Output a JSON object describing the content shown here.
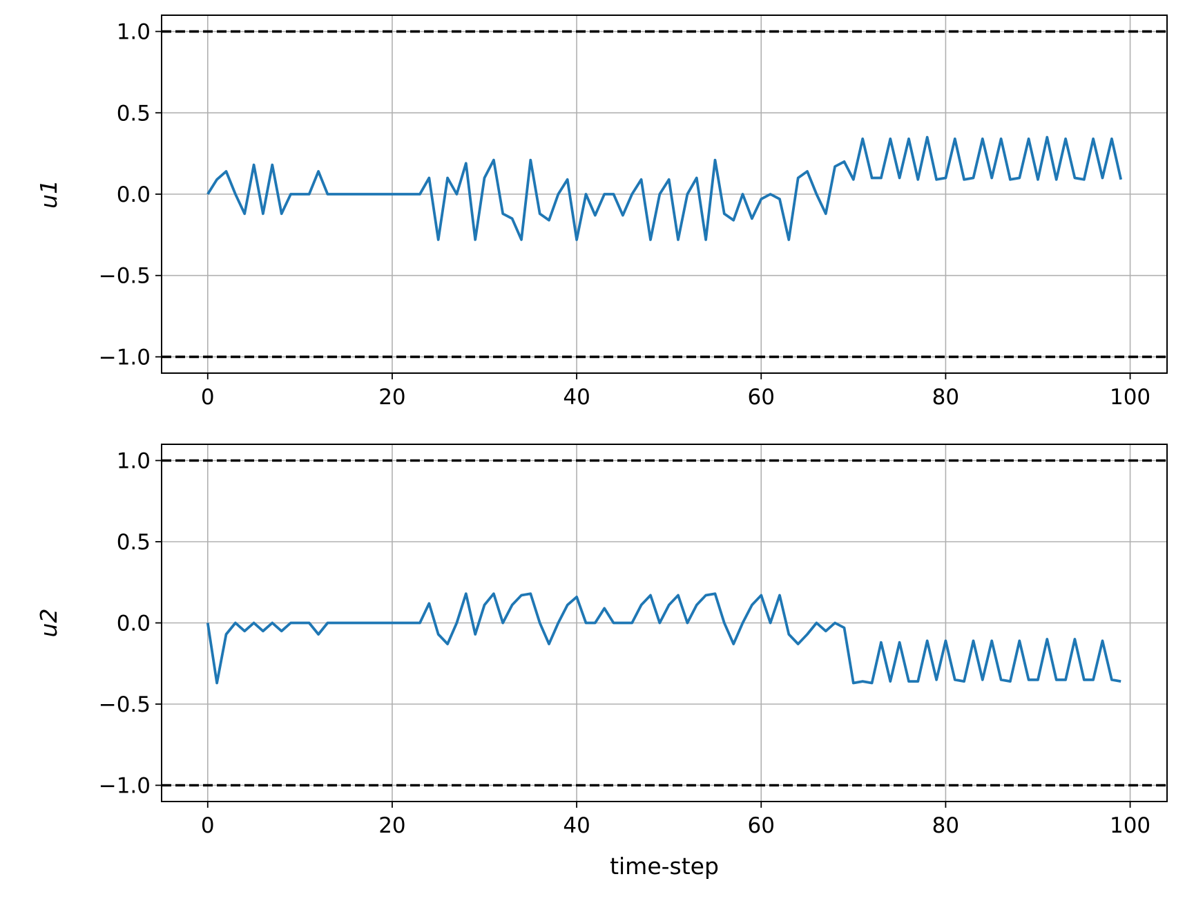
{
  "chart_data": [
    {
      "type": "line",
      "ylabel": "u1",
      "xlabel": "",
      "xlim": [
        -5,
        104
      ],
      "ylim": [
        -1.1,
        1.1
      ],
      "xticks": [
        0,
        20,
        40,
        60,
        80,
        100
      ],
      "yticks": [
        1.0,
        0.5,
        0.0,
        -0.5,
        -1.0
      ],
      "xtick_labels": [
        "0",
        "20",
        "40",
        "60",
        "80",
        "100"
      ],
      "ytick_labels": [
        "1.0",
        "0.5",
        "0.0",
        "−0.5",
        "−1.0"
      ],
      "grid": true,
      "bounds": [
        1.0,
        -1.0
      ],
      "series_color": "#1f77b4",
      "bound_color": "#000000",
      "x_start": 0,
      "values": [
        0.0,
        0.09,
        0.14,
        0.0,
        -0.12,
        0.18,
        -0.12,
        0.18,
        -0.12,
        0.0,
        0.0,
        0.0,
        0.14,
        0.0,
        0.0,
        0.0,
        0.0,
        0.0,
        0.0,
        0.0,
        0.0,
        0.0,
        0.0,
        0.0,
        0.1,
        -0.28,
        0.1,
        0.0,
        0.19,
        -0.28,
        0.1,
        0.21,
        -0.12,
        -0.15,
        -0.28,
        0.21,
        -0.12,
        -0.16,
        0.0,
        0.09,
        -0.28,
        0.0,
        -0.13,
        0.0,
        0.0,
        -0.13,
        0.0,
        0.09,
        -0.28,
        0.0,
        0.09,
        -0.28,
        0.0,
        0.1,
        -0.28,
        0.21,
        -0.12,
        -0.16,
        0.0,
        -0.15,
        -0.03,
        0.0,
        -0.03,
        -0.28,
        0.1,
        0.14,
        0.0,
        -0.12,
        0.17,
        0.2,
        0.09,
        0.34,
        0.1,
        0.1,
        0.34,
        0.1,
        0.34,
        0.09,
        0.35,
        0.09,
        0.1,
        0.34,
        0.09,
        0.1,
        0.34,
        0.1,
        0.34,
        0.09,
        0.1,
        0.34,
        0.09,
        0.35,
        0.09,
        0.34,
        0.1,
        0.09,
        0.34,
        0.1,
        0.34,
        0.09
      ]
    },
    {
      "type": "line",
      "ylabel": "u2",
      "xlabel": "time-step",
      "xlim": [
        -5,
        104
      ],
      "ylim": [
        -1.1,
        1.1
      ],
      "xticks": [
        0,
        20,
        40,
        60,
        80,
        100
      ],
      "yticks": [
        1.0,
        0.5,
        0.0,
        -0.5,
        -1.0
      ],
      "xtick_labels": [
        "0",
        "20",
        "40",
        "60",
        "80",
        "100"
      ],
      "ytick_labels": [
        "1.0",
        "0.5",
        "0.0",
        "−0.5",
        "−1.0"
      ],
      "grid": true,
      "bounds": [
        1.0,
        -1.0
      ],
      "series_color": "#1f77b4",
      "bound_color": "#000000",
      "x_start": 0,
      "values": [
        0.0,
        -0.37,
        -0.07,
        0.0,
        -0.05,
        0.0,
        -0.05,
        0.0,
        -0.05,
        0.0,
        0.0,
        0.0,
        -0.07,
        0.0,
        0.0,
        0.0,
        0.0,
        0.0,
        0.0,
        0.0,
        0.0,
        0.0,
        0.0,
        0.0,
        0.12,
        -0.07,
        -0.13,
        0.0,
        0.18,
        -0.07,
        0.11,
        0.18,
        0.0,
        0.11,
        0.17,
        0.18,
        0.0,
        -0.13,
        0.0,
        0.11,
        0.16,
        0.0,
        0.0,
        0.09,
        0.0,
        0.0,
        0.0,
        0.11,
        0.17,
        0.0,
        0.11,
        0.17,
        0.0,
        0.11,
        0.17,
        0.18,
        0.0,
        -0.13,
        0.0,
        0.11,
        0.17,
        0.0,
        0.17,
        -0.07,
        -0.13,
        -0.07,
        0.0,
        -0.05,
        0.0,
        -0.03,
        -0.37,
        -0.36,
        -0.37,
        -0.12,
        -0.36,
        -0.12,
        -0.36,
        -0.36,
        -0.11,
        -0.35,
        -0.11,
        -0.35,
        -0.36,
        -0.11,
        -0.35,
        -0.11,
        -0.35,
        -0.36,
        -0.11,
        -0.35,
        -0.35,
        -0.1,
        -0.35,
        -0.35,
        -0.1,
        -0.35,
        -0.35,
        -0.11,
        -0.35,
        -0.36
      ]
    }
  ]
}
